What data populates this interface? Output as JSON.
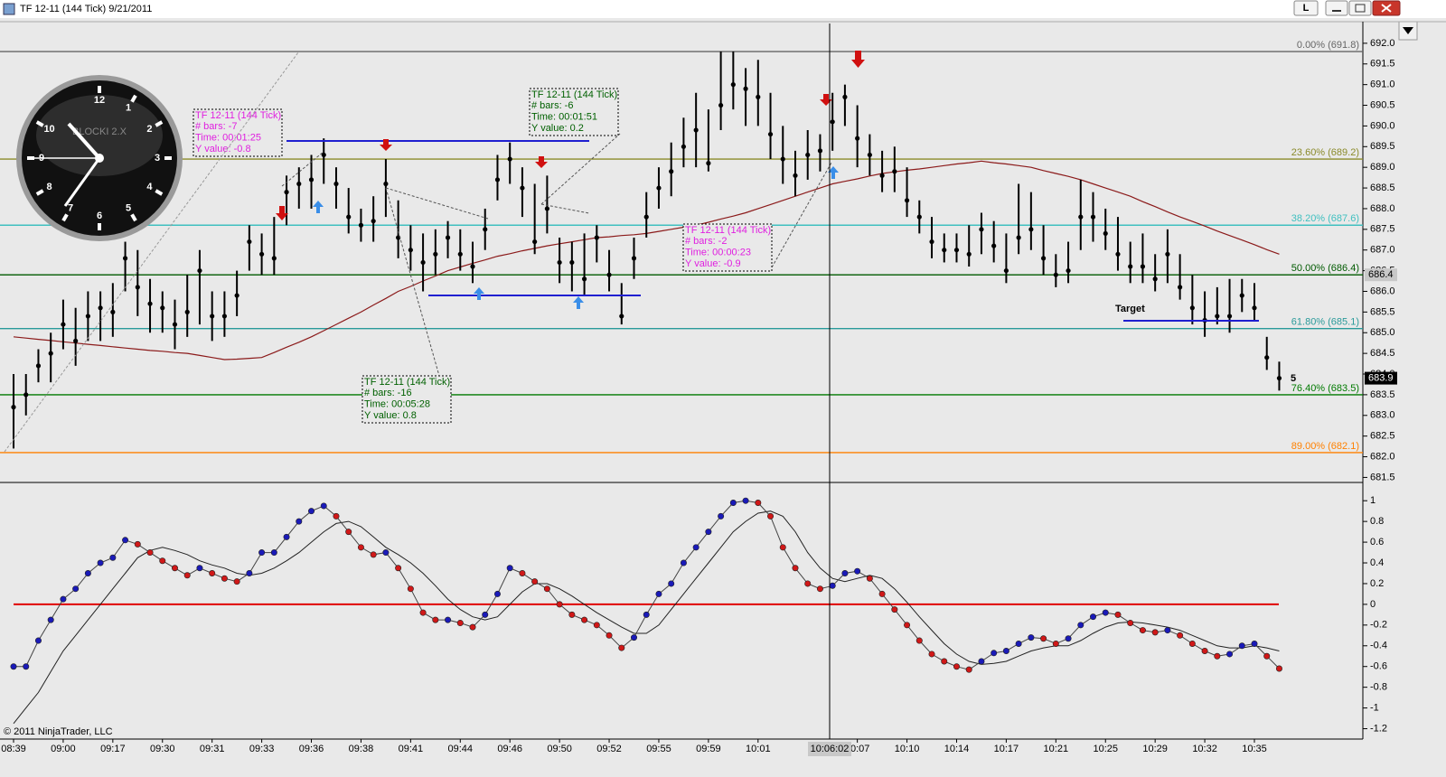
{
  "window": {
    "title": "TF 12-11 (144 Tick)  9/21/2011",
    "button": "L"
  },
  "chart_data": [
    {
      "type": "ohlc",
      "color": "#000000",
      "high": [
        684.0,
        684.0,
        684.6,
        685.0,
        685.8,
        685.6,
        686.0,
        686.0,
        686.2,
        687.2,
        687.0,
        686.3,
        686.0,
        685.8,
        686.4,
        687.0,
        686.0,
        686.0,
        686.5,
        687.6,
        687.4,
        687.8,
        688.8,
        689.0,
        689.3,
        689.7,
        689.0,
        688.5,
        688.0,
        688.3,
        689.2,
        688.2,
        687.6,
        687.4,
        687.5,
        687.7,
        687.5,
        687.2,
        688.0,
        689.3,
        689.6,
        689.0,
        688.6,
        688.8,
        687.3,
        687.2,
        687.4,
        687.6,
        687.0,
        686.2,
        687.3,
        688.4,
        689.0,
        689.6,
        690.2,
        690.8,
        690.4,
        691.8,
        691.8,
        691.4,
        691.6,
        690.8,
        690.0,
        689.4,
        689.9,
        689.8,
        690.8,
        691.0,
        690.5,
        689.8,
        689.4,
        689.5,
        689.0,
        688.2,
        687.8,
        687.4,
        687.4,
        687.6,
        687.9,
        687.7,
        687.4,
        688.6,
        688.4,
        687.6,
        686.9,
        687.2,
        688.7,
        688.4,
        688.0,
        687.8,
        687.2,
        687.4,
        686.9,
        687.5,
        686.9,
        686.4,
        686.0,
        686.1,
        686.3,
        686.3,
        686.2,
        684.9,
        684.3
      ],
      "low": [
        682.2,
        683.0,
        683.8,
        683.8,
        684.6,
        684.2,
        684.8,
        684.8,
        684.9,
        686.0,
        685.4,
        685.0,
        685.0,
        684.6,
        684.9,
        685.2,
        684.8,
        684.9,
        685.4,
        686.5,
        686.4,
        686.4,
        687.6,
        688.0,
        688.0,
        688.6,
        688.0,
        687.4,
        687.2,
        687.2,
        687.8,
        686.8,
        686.5,
        686.0,
        686.4,
        686.8,
        686.5,
        686.2,
        687.0,
        688.2,
        688.6,
        687.8,
        686.9,
        687.4,
        686.2,
        686.0,
        685.9,
        686.7,
        686.0,
        685.2,
        686.3,
        687.3,
        688.0,
        688.3,
        689.0,
        689.0,
        688.9,
        689.9,
        690.4,
        690.0,
        690.0,
        689.2,
        688.6,
        688.3,
        688.7,
        688.9,
        689.4,
        690.0,
        689.0,
        688.8,
        688.4,
        688.4,
        687.8,
        687.4,
        686.8,
        686.7,
        686.7,
        686.6,
        686.9,
        686.7,
        686.2,
        686.9,
        687.0,
        686.4,
        686.1,
        686.2,
        687.0,
        687.2,
        687.0,
        686.5,
        686.2,
        686.2,
        686.0,
        686.2,
        685.8,
        685.2,
        684.9,
        685.2,
        685.0,
        685.5,
        685.3,
        684.1,
        683.6
      ],
      "values": [
        683.2,
        683.5,
        684.2,
        684.5,
        685.2,
        684.8,
        685.4,
        685.6,
        685.5,
        686.8,
        686.1,
        685.7,
        685.6,
        685.2,
        685.5,
        686.5,
        685.4,
        685.4,
        685.9,
        687.2,
        686.9,
        686.8,
        688.4,
        688.6,
        688.7,
        689.3,
        688.6,
        687.8,
        687.6,
        687.7,
        688.6,
        687.3,
        687.0,
        686.7,
        686.9,
        687.3,
        686.9,
        686.6,
        687.5,
        688.7,
        689.2,
        688.5,
        687.2,
        688.0,
        686.7,
        686.7,
        686.3,
        687.3,
        686.4,
        685.4,
        686.8,
        687.8,
        688.5,
        688.9,
        689.5,
        689.9,
        689.1,
        690.5,
        691.0,
        690.9,
        690.7,
        689.8,
        689.2,
        688.8,
        689.3,
        689.4,
        690.1,
        690.7,
        689.7,
        689.3,
        688.8,
        688.9,
        688.2,
        687.8,
        687.2,
        687.0,
        687.0,
        686.9,
        687.5,
        687.1,
        686.5,
        687.3,
        687.5,
        686.8,
        686.4,
        686.5,
        687.8,
        687.8,
        687.4,
        686.9,
        686.6,
        686.6,
        686.3,
        686.9,
        686.1,
        685.6,
        685.3,
        685.4,
        685.4,
        685.9,
        685.6,
        684.4,
        683.9
      ],
      "ma": [
        684.9,
        684.87,
        684.84,
        684.81,
        684.78,
        684.75,
        684.72,
        684.69,
        684.66,
        684.63,
        684.6,
        684.57,
        684.55,
        684.52,
        684.5,
        684.45,
        684.4,
        684.35,
        684.36,
        684.38,
        684.4,
        684.52,
        684.65,
        684.77,
        684.9,
        685.05,
        685.2,
        685.35,
        685.5,
        685.67,
        685.83,
        686.0,
        686.12,
        686.25,
        686.37,
        686.5,
        686.59,
        686.68,
        686.76,
        686.85,
        686.91,
        686.98,
        687.04,
        687.1,
        687.15,
        687.2,
        687.25,
        687.3,
        687.32,
        687.35,
        687.37,
        687.4,
        687.45,
        687.5,
        687.55,
        687.6,
        687.67,
        687.75,
        687.82,
        687.9,
        688.0,
        688.1,
        688.2,
        688.3,
        688.4,
        688.5,
        688.6,
        688.66,
        688.72,
        688.79,
        688.85,
        688.89,
        688.93,
        688.96,
        689.0,
        689.04,
        689.08,
        689.11,
        689.15,
        689.11,
        689.08,
        689.04,
        689.0,
        688.92,
        688.85,
        688.78,
        688.7,
        688.6,
        688.5,
        688.4,
        688.3,
        688.17,
        688.05,
        687.92,
        687.8,
        687.69,
        687.58,
        687.46,
        687.35,
        687.24,
        687.13,
        687.01,
        686.9
      ],
      "ma_color": "#8b1a1a",
      "ylim": [
        681.4,
        692.5
      ],
      "yticks": [
        {
          "value": 692,
          "label": "692.0"
        },
        691.5,
        {
          "value": 691,
          "label": "691.0"
        },
        690.5,
        {
          "value": 690,
          "label": "690.0"
        },
        689.5,
        {
          "value": 689,
          "label": "689.0"
        },
        688.5,
        {
          "value": 688,
          "label": "688.0"
        },
        687.5,
        {
          "value": 687,
          "label": "687.0"
        },
        686.5,
        {
          "value": 686,
          "label": "686.0"
        },
        685.5,
        {
          "value": 685,
          "label": "685.0"
        },
        684.5,
        {
          "value": 684,
          "label": "684.0"
        },
        683.5,
        {
          "value": 683,
          "label": "683.0"
        },
        682.5,
        {
          "value": 682,
          "label": "682.0"
        },
        681.5
      ],
      "levels": [
        {
          "value": 691.8,
          "label": "0.00% (691.8)",
          "color": "#666666"
        },
        {
          "value": 689.2,
          "label": "23.60% (689.2)",
          "color": "#8a8a2a"
        },
        {
          "value": 687.6,
          "label": "38.20% (687.6)",
          "color": "#40c0c0"
        },
        {
          "value": 686.4,
          "label": "50.00% (686.4)",
          "color": "#005a00"
        },
        {
          "value": 685.1,
          "label": "61.80% (685.1)",
          "color": "#2a9a9a"
        },
        {
          "value": 683.5,
          "label": "76.40% (683.5)",
          "color": "#007a00"
        },
        {
          "value": 682.1,
          "label": "89.00% (682.1)",
          "color": "#ff8000"
        }
      ],
      "markers": [
        {
          "value": 686.4,
          "color": "#c8c8c8"
        },
        {
          "value": 683.9,
          "color": "#000000"
        }
      ],
      "annotations": [
        {
          "color": "#e020e0",
          "lines": [
            "TF 12-11 (144 Tick)",
            "# bars:   -7",
            "Time:     00:01:25",
            "Y value: -0.8"
          ]
        },
        {
          "color": "#006000",
          "lines": [
            "TF 12-11 (144 Tick)",
            "# bars:   -6",
            "Time:     00:01:51",
            "Y value: 0.2"
          ]
        },
        {
          "color": "#e020e0",
          "lines": [
            "TF 12-11 (144 Tick)",
            "# bars:   -2",
            "Time:     00:00:23",
            "Y value: -0.9"
          ]
        },
        {
          "color": "#006000",
          "lines": [
            "TF 12-11 (144 Tick)",
            "# bars:   -16",
            "Time:     00:05:28",
            "Y value: 0.8"
          ]
        }
      ],
      "target_label": "Target",
      "count_label": "5"
    },
    {
      "type": "line",
      "categories": [
        "08:39",
        null,
        null,
        null,
        "09:00",
        null,
        null,
        null,
        "09:17",
        null,
        null,
        null,
        "09:30",
        null,
        null,
        null,
        "09:31",
        null,
        null,
        null,
        "09:33",
        null,
        null,
        null,
        "09:36",
        null,
        null,
        null,
        "09:38",
        null,
        null,
        null,
        "09:41",
        null,
        null,
        null,
        "09:44",
        null,
        null,
        null,
        "09:46",
        null,
        null,
        null,
        "09:50",
        null,
        null,
        null,
        "09:52",
        null,
        null,
        null,
        "09:55",
        null,
        null,
        null,
        "09:59",
        null,
        null,
        null,
        "10:01",
        null,
        null,
        null,
        null,
        null,
        null,
        null,
        "10:07",
        null,
        null,
        null,
        "10:10",
        null,
        null,
        null,
        "10:14",
        null,
        null,
        null,
        "10:17",
        null,
        null,
        null,
        "10:21",
        null,
        null,
        null,
        "10:25",
        null,
        null,
        null,
        "10:29",
        null,
        null,
        null,
        "10:32",
        null,
        null,
        null,
        "10:35",
        null,
        null
      ],
      "values": [
        -0.6,
        -0.6,
        -0.35,
        -0.15,
        0.05,
        0.15,
        0.3,
        0.4,
        0.45,
        0.62,
        0.58,
        0.5,
        0.42,
        0.35,
        0.28,
        0.35,
        0.3,
        0.25,
        0.22,
        0.3,
        0.5,
        0.5,
        0.65,
        0.8,
        0.9,
        0.95,
        0.85,
        0.7,
        0.55,
        0.48,
        0.5,
        0.35,
        0.15,
        -0.08,
        -0.15,
        -0.15,
        -0.18,
        -0.22,
        -0.1,
        0.1,
        0.35,
        0.3,
        0.22,
        0.15,
        0,
        -0.1,
        -0.15,
        -0.2,
        -0.3,
        -0.42,
        -0.32,
        -0.1,
        0.1,
        0.2,
        0.4,
        0.55,
        0.7,
        0.85,
        0.98,
        1,
        0.98,
        0.85,
        0.55,
        0.35,
        0.2,
        0.15,
        0.18,
        0.3,
        0.32,
        0.25,
        0.1,
        -0.05,
        -0.2,
        -0.35,
        -0.48,
        -0.55,
        -0.6,
        -0.63,
        -0.55,
        -0.47,
        -0.45,
        -0.38,
        -0.32,
        -0.33,
        -0.38,
        -0.33,
        -0.2,
        -0.12,
        -0.08,
        -0.1,
        -0.18,
        -0.25,
        -0.27,
        -0.25,
        -0.3,
        -0.38,
        -0.45,
        -0.5,
        -0.48,
        -0.4,
        -0.38,
        -0.5,
        -0.62
      ],
      "signal": [
        -1.15,
        -1.0,
        -0.85,
        -0.65,
        -0.45,
        -0.3,
        -0.15,
        0,
        0.15,
        0.3,
        0.45,
        0.52,
        0.55,
        0.52,
        0.48,
        0.42,
        0.38,
        0.35,
        0.3,
        0.28,
        0.3,
        0.35,
        0.42,
        0.5,
        0.6,
        0.7,
        0.78,
        0.8,
        0.75,
        0.65,
        0.55,
        0.48,
        0.4,
        0.3,
        0.18,
        0.05,
        -0.05,
        -0.12,
        -0.15,
        -0.12,
        0,
        0.12,
        0.2,
        0.2,
        0.15,
        0.08,
        0,
        -0.08,
        -0.15,
        -0.22,
        -0.28,
        -0.28,
        -0.2,
        -0.05,
        0.1,
        0.25,
        0.4,
        0.55,
        0.7,
        0.8,
        0.88,
        0.9,
        0.85,
        0.7,
        0.5,
        0.35,
        0.25,
        0.22,
        0.25,
        0.28,
        0.25,
        0.15,
        0.02,
        -0.12,
        -0.25,
        -0.38,
        -0.48,
        -0.55,
        -0.58,
        -0.57,
        -0.55,
        -0.5,
        -0.45,
        -0.42,
        -0.4,
        -0.4,
        -0.35,
        -0.28,
        -0.22,
        -0.18,
        -0.17,
        -0.18,
        -0.2,
        -0.22,
        -0.25,
        -0.3,
        -0.35,
        -0.4,
        -0.42,
        -0.42,
        -0.4,
        -0.42,
        -0.45
      ],
      "up_color": "#1a1ab8",
      "down_color": "#d01818",
      "zero_line_color": "#e00000",
      "ylim": [
        -1.3,
        1.15
      ],
      "yticks": [
        1,
        0.8,
        0.6,
        0.4,
        0.2,
        0,
        -0.2,
        -0.4,
        -0.6,
        -0.8,
        -1,
        -1.2
      ]
    }
  ],
  "crosshair_label": "10:06:02",
  "clock": {
    "brand": "BLOCKI 2.X",
    "numerals": [
      "12",
      "1",
      "2",
      "3",
      "4",
      "5",
      "6",
      "7",
      "8",
      "9",
      "10"
    ]
  },
  "copyright": "© 2011 NinjaTrader, LLC"
}
